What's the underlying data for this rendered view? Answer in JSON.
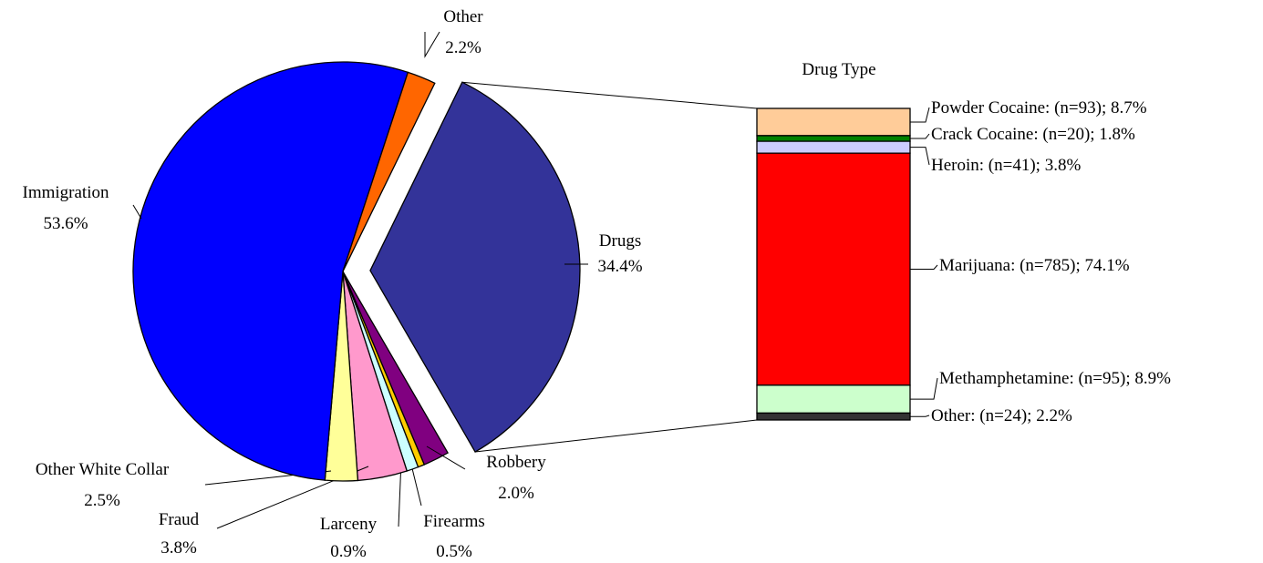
{
  "chart_data": [
    {
      "type": "pie",
      "title": "",
      "exploded": "Drugs",
      "slices": [
        {
          "label": "Drugs",
          "value": 34.4,
          "display": "34.4%",
          "color": "#333399"
        },
        {
          "label": "Robbery",
          "value": 2.0,
          "display": "2.0%",
          "color": "#800080"
        },
        {
          "label": "Firearms",
          "value": 0.5,
          "display": "0.5%",
          "color": "#FFCC00"
        },
        {
          "label": "Larceny",
          "value": 0.9,
          "display": "0.9%",
          "color": "#CCFFFF"
        },
        {
          "label": "Fraud",
          "value": 3.8,
          "display": "3.8%",
          "color": "#FF99CC"
        },
        {
          "label": "Other White Collar",
          "value": 2.5,
          "display": "2.5%",
          "color": "#FFFF99"
        },
        {
          "label": "Immigration",
          "value": 53.6,
          "display": "53.6%",
          "color": "#0000FF"
        },
        {
          "label": "Other",
          "value": 2.2,
          "display": "2.2%",
          "color": "#FF6600"
        }
      ]
    },
    {
      "type": "bar",
      "stacked": true,
      "title": "Drug Type",
      "series": [
        {
          "label": "Powder Cocaine: (n=93); 8.7%",
          "value": 8.7,
          "color": "#FFCC99"
        },
        {
          "label": "Crack Cocaine: (n=20); 1.8%",
          "value": 1.8,
          "color": "#008000"
        },
        {
          "label": "Heroin: (n=41); 3.8%",
          "value": 3.8,
          "color": "#CCCCFF"
        },
        {
          "label": "Marijuana: (n=785); 74.1%",
          "value": 74.1,
          "color": "#FF0000"
        },
        {
          "label": "Methamphetamine: (n=95); 8.9%",
          "value": 8.9,
          "color": "#CCFFCC"
        },
        {
          "label": "Other: (n=24); 2.2%",
          "value": 2.2,
          "color": "#333333"
        }
      ]
    }
  ]
}
